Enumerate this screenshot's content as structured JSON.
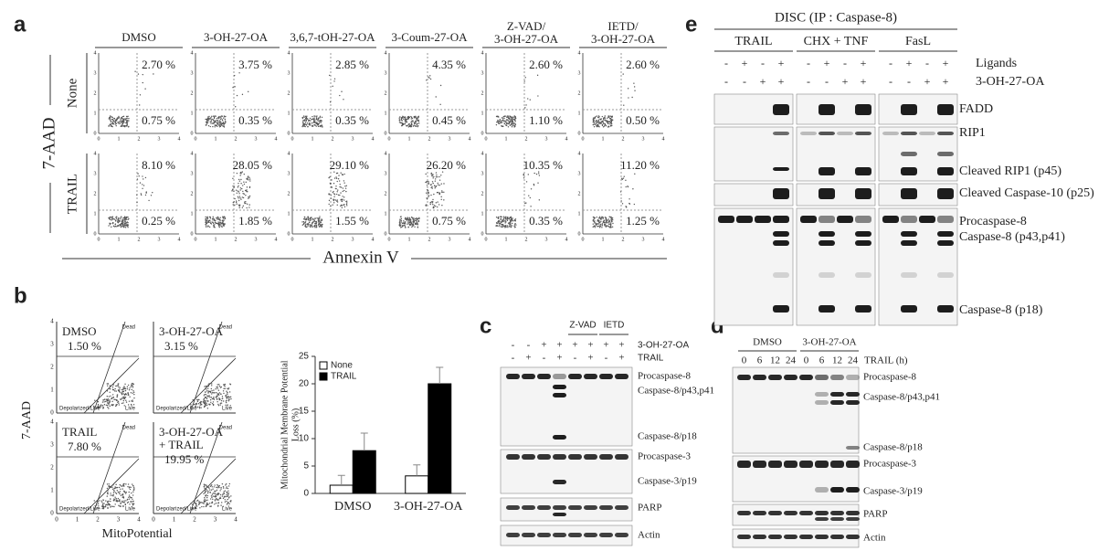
{
  "panel_a": {
    "label": "a",
    "y_axis_label": "7-AAD",
    "x_axis_label": "Annexin V",
    "columns": [
      [
        "DMSO"
      ],
      [
        "3-OH-27-OA"
      ],
      [
        "3,6,7-tOH-27-OA"
      ],
      [
        "3-Coum-27-OA"
      ],
      [
        "Z-VAD/",
        "3-OH-27-OA"
      ],
      [
        "IETD/",
        "3-OH-27-OA"
      ]
    ],
    "rows": [
      {
        "label": "None",
        "upper": [
          "2.70 %",
          "3.75 %",
          "2.85 %",
          "4.35 %",
          "2.60 %",
          "2.60 %"
        ],
        "lower": [
          "0.75 %",
          "0.35 %",
          "0.35 %",
          "0.45 %",
          "1.10 %",
          "0.50 %"
        ]
      },
      {
        "label": "TRAIL",
        "upper": [
          "8.10 %",
          "28.05 %",
          "29.10 %",
          "26.20 %",
          "10.35 %",
          "11.20 %"
        ],
        "lower": [
          "0.25 %",
          "1.85 %",
          "1.55 %",
          "0.75 %",
          "0.35 %",
          "1.25 %"
        ]
      }
    ],
    "axis_ticks": [
      0,
      1,
      2,
      3,
      4
    ]
  },
  "panel_b": {
    "label": "b",
    "y_axis_label": "7-AAD",
    "x_axis_label": "MitoPotential",
    "plots": [
      {
        "label": [
          "DMSO"
        ],
        "value": "1.50 %"
      },
      {
        "label": [
          "3-OH-27-OA"
        ],
        "value": "3.15 %"
      },
      {
        "label": [
          "TRAIL"
        ],
        "value": "7.80 %"
      },
      {
        "label": [
          "3-OH-27-OA",
          "+ TRAIL"
        ],
        "value": "19.95 %"
      }
    ],
    "gates": [
      "Dead",
      "Depolarized/Live",
      "Live"
    ],
    "axis_ticks": [
      0,
      1,
      2,
      3,
      4
    ]
  },
  "chart_data": {
    "type": "bar",
    "y_label": [
      "Mitochondrial Membrane Potential",
      "Loss (%)"
    ],
    "categories": [
      "DMSO",
      "3-OH-27-OA"
    ],
    "series": [
      {
        "name": "None",
        "color": "#ffffff",
        "values": [
          1.5,
          3.2
        ],
        "errors": [
          1.8,
          2
        ]
      },
      {
        "name": "TRAIL",
        "color": "#000000",
        "values": [
          7.8,
          20
        ],
        "errors": [
          3.2,
          3
        ]
      }
    ],
    "ylim": [
      0,
      25
    ],
    "yticks": [
      0,
      5,
      10,
      15,
      20,
      25
    ]
  },
  "panel_c": {
    "label": "c",
    "inhibitors": [
      "Z-VAD",
      "IETD"
    ],
    "row_labels": [
      "3-OH-27-OA",
      "TRAIL"
    ],
    "signs": [
      [
        "-",
        "-",
        "+",
        "+",
        "+",
        "+",
        "+",
        "+"
      ],
      [
        "-",
        "+",
        "-",
        "+",
        "-",
        "+",
        "-",
        "+"
      ]
    ],
    "bands": [
      "Procaspase-8",
      "Caspase-8/p43,p41",
      "Caspase-8/p18",
      "Procaspase-3",
      "Caspase-3/p19",
      "PARP",
      "Actin"
    ]
  },
  "panel_d": {
    "label": "d",
    "groups": [
      "DMSO",
      "3-OH-27-OA"
    ],
    "time_label": "TRAIL  (h)",
    "times": [
      0,
      6,
      12,
      24,
      0,
      6,
      12,
      24
    ],
    "bands": [
      "Procaspase-8",
      "Caspase-8/p43,p41",
      "Caspase-8/p18",
      "Procaspase-3",
      "Caspase-3/p19",
      "PARP",
      "Actin"
    ]
  },
  "panel_e": {
    "label": "e",
    "title": "DISC (IP : Caspase-8)",
    "groups": [
      "TRAIL",
      "CHX + TNF",
      "FasL"
    ],
    "row_labels": [
      "Ligands",
      "3-OH-27-OA"
    ],
    "signs": [
      [
        "-",
        "+",
        "-",
        "+"
      ],
      [
        "-",
        "-",
        "+",
        "+"
      ]
    ],
    "bands": [
      "FADD",
      "RIP1",
      "Cleaved RIP1 (p45)",
      "Cleaved Caspase-10 (p25)",
      "Procaspase-8",
      "Caspase-8 (p43,p41)",
      "Caspase-8 (p18)"
    ]
  }
}
